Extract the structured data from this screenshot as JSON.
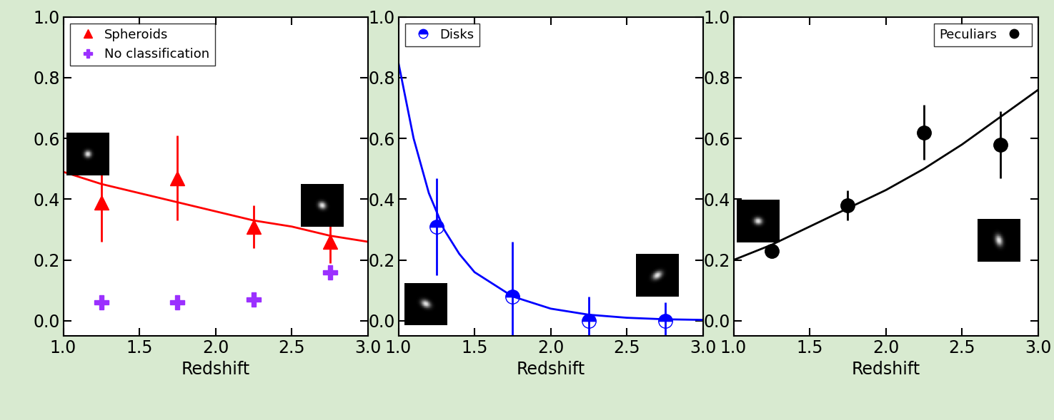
{
  "chart_data": [
    {
      "type": "scatter",
      "xlabel": "Redshift",
      "xlim": [
        1.0,
        3.0
      ],
      "ylim": [
        -0.05,
        1.0
      ],
      "xticks": [
        {
          "value": 1.0,
          "label": "1.0"
        },
        {
          "value": 1.5,
          "label": "1.5"
        },
        {
          "value": 2.0,
          "label": "2.0"
        },
        {
          "value": 2.5,
          "label": "2.5"
        },
        {
          "value": 3.0,
          "label": "3.0"
        }
      ],
      "yticks": [
        {
          "value": 0,
          "label": "0.0"
        },
        {
          "value": 0.2,
          "label": "0.2"
        },
        {
          "value": 0.4,
          "label": "0.4"
        },
        {
          "value": 0.6,
          "label": "0.6"
        },
        {
          "value": 0.8,
          "label": "0.8"
        },
        {
          "value": 1.0,
          "label": "1.0"
        }
      ],
      "legend": "upper left",
      "series": [
        {
          "name": "Spheroids",
          "type": "scatter",
          "color": "#ff0000",
          "marker": "triangle",
          "x": [
            1.25,
            1.75,
            2.25,
            2.75
          ],
          "values": [
            0.39,
            0.47,
            0.31,
            0.26
          ],
          "errors": [
            0.13,
            0.14,
            0.07,
            0.07
          ]
        },
        {
          "name": "No classification",
          "type": "scatter",
          "color": "#9b30ff",
          "marker": "plus",
          "x": [
            1.25,
            1.75,
            2.25,
            2.75
          ],
          "values": [
            0.06,
            0.06,
            0.07,
            0.16
          ]
        },
        {
          "type": "line",
          "color": "#ff0000",
          "x": [
            1.0,
            1.25,
            1.5,
            1.75,
            2.0,
            2.25,
            2.5,
            2.75,
            3.0
          ],
          "values": [
            0.49,
            0.45,
            0.42,
            0.39,
            0.36,
            0.33,
            0.31,
            0.28,
            0.26
          ]
        }
      ]
    },
    {
      "type": "scatter",
      "xlabel": "Redshift",
      "xlim": [
        1.0,
        3.0
      ],
      "ylim": [
        -0.05,
        1.0
      ],
      "xticks": [
        {
          "value": 1.0,
          "label": "1.0"
        },
        {
          "value": 1.5,
          "label": "1.5"
        },
        {
          "value": 2.0,
          "label": "2.0"
        },
        {
          "value": 2.5,
          "label": "2.5"
        },
        {
          "value": 3.0,
          "label": "3.0"
        }
      ],
      "yticks": [
        {
          "value": 0,
          "label": "0.0"
        },
        {
          "value": 0.2,
          "label": "0.2"
        },
        {
          "value": 0.4,
          "label": "0.4"
        },
        {
          "value": 0.6,
          "label": "0.6"
        },
        {
          "value": 0.8,
          "label": "0.8"
        },
        {
          "value": 1.0,
          "label": "1.0"
        }
      ],
      "legend": "upper left",
      "series": [
        {
          "name": "Disks",
          "type": "scatter",
          "color": "#0000ff",
          "marker": "half_circle",
          "x": [
            1.25,
            1.75,
            2.25,
            2.75
          ],
          "values": [
            0.31,
            0.08,
            0.0,
            0.0
          ],
          "errors": [
            0.16,
            0.18,
            0.08,
            0.06
          ]
        },
        {
          "type": "line",
          "color": "#0000ff",
          "x": [
            1.0,
            1.1,
            1.2,
            1.3,
            1.4,
            1.5,
            1.75,
            2.0,
            2.25,
            2.5,
            2.75,
            3.0
          ],
          "values": [
            0.85,
            0.6,
            0.42,
            0.3,
            0.22,
            0.16,
            0.08,
            0.04,
            0.02,
            0.01,
            0.005,
            0.003
          ]
        }
      ]
    },
    {
      "type": "scatter",
      "xlabel": "Redshift",
      "xlim": [
        1.0,
        3.0
      ],
      "ylim": [
        -0.05,
        1.0
      ],
      "xticks": [
        {
          "value": 1.0,
          "label": "1.0"
        },
        {
          "value": 1.5,
          "label": "1.5"
        },
        {
          "value": 2.0,
          "label": "2.0"
        },
        {
          "value": 2.5,
          "label": "2.5"
        },
        {
          "value": 3.0,
          "label": "3.0"
        }
      ],
      "yticks": [
        {
          "value": 0,
          "label": "0.0"
        },
        {
          "value": 0.2,
          "label": "0.2"
        },
        {
          "value": 0.4,
          "label": "0.4"
        },
        {
          "value": 0.6,
          "label": "0.6"
        },
        {
          "value": 0.8,
          "label": "0.8"
        },
        {
          "value": 1.0,
          "label": "1.0"
        }
      ],
      "legend": "upper right",
      "series": [
        {
          "name": "Peculiars",
          "type": "scatter",
          "color": "#000000",
          "marker": "circle",
          "x": [
            1.25,
            1.75,
            2.25,
            2.75
          ],
          "values": [
            0.23,
            0.38,
            0.62,
            0.58
          ],
          "errors": [
            0.02,
            0.05,
            0.09,
            0.11
          ]
        },
        {
          "type": "line",
          "color": "#000000",
          "x": [
            1.0,
            1.25,
            1.5,
            1.75,
            2.0,
            2.25,
            2.5,
            2.75,
            3.0
          ],
          "values": [
            0.2,
            0.25,
            0.31,
            0.37,
            0.43,
            0.5,
            0.58,
            0.67,
            0.76
          ]
        }
      ]
    }
  ]
}
